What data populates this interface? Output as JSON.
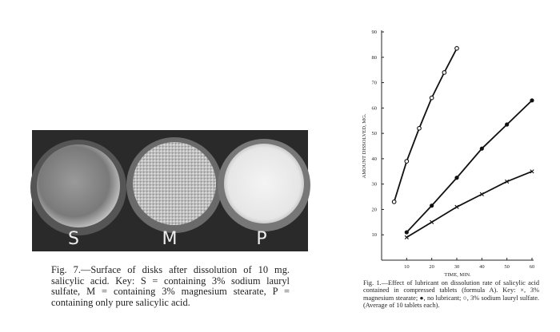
{
  "figure7": {
    "labels": [
      "S",
      "M",
      "P"
    ],
    "caption": "Fig. 7.—Surface of disks after dissolution of 10 mg. salicylic acid. Key: S = containing 3% sodium lauryl sulfate, M = containing 3% magnesium stearate, P = containing only pure salicylic acid."
  },
  "chart_data": {
    "type": "line",
    "x_label": "TIME, MIN.",
    "y_label": "AMOUNT DISSOLVED, MG.",
    "caption": "Fig. 1.—Effect of lubricant on dissolution rate of salicylic acid contained in compressed tablets (formula A). Key: ×, 3% magnesium stearate; ●, no lubricant; ○, 3% sodium lauryl sulfate. (Average of 10 tablets each).",
    "xlim": [
      0,
      60
    ],
    "ylim": [
      0,
      90
    ],
    "xticks": [
      10,
      20,
      30,
      40,
      50,
      60
    ],
    "yticks": [
      10,
      20,
      30,
      40,
      50,
      60,
      70,
      80,
      90
    ],
    "series": [
      {
        "marker": "open-circle",
        "color": "#111111",
        "x": [
          5,
          10,
          15,
          20,
          25,
          30
        ],
        "values": [
          23,
          39,
          52,
          64,
          74,
          83.5
        ]
      },
      {
        "marker": "filled-circle",
        "color": "#111111",
        "x": [
          10,
          20,
          30,
          40,
          50,
          60
        ],
        "values": [
          11,
          21.5,
          32.5,
          44,
          53.5,
          63
        ]
      },
      {
        "marker": "cross",
        "color": "#111111",
        "x": [
          10,
          20,
          30,
          40,
          50,
          60
        ],
        "values": [
          9,
          15,
          21,
          26,
          31,
          35
        ]
      }
    ]
  }
}
